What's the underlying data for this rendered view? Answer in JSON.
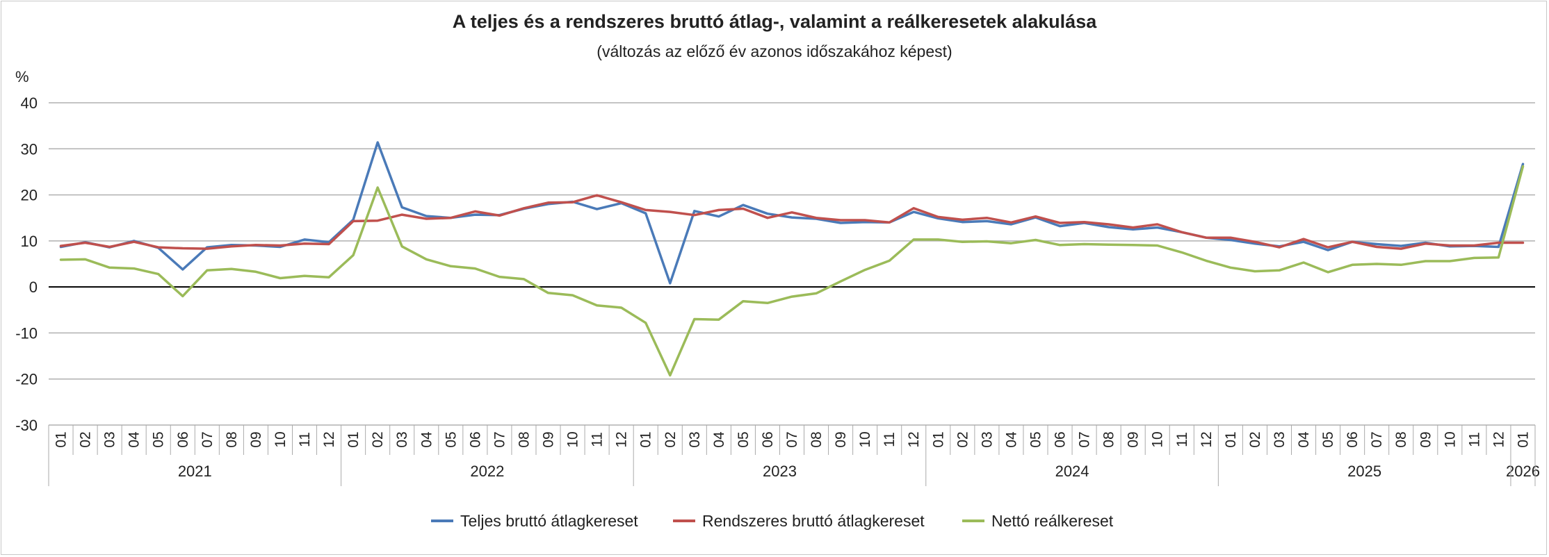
{
  "chart_data": {
    "type": "line",
    "title": "A teljes és a rendszeres bruttó átlag-, valamint a reálkeresetek alakulása",
    "subtitle": "(változás az előző év azonos időszakához képest)",
    "ylabel": "%",
    "ylim": [
      -30,
      40
    ],
    "yticks": [
      40,
      30,
      20,
      10,
      0,
      -10,
      -20,
      -30
    ],
    "grid": true,
    "legend_position": "bottom",
    "months": [
      "01",
      "02",
      "03",
      "04",
      "05",
      "06",
      "07",
      "08",
      "09",
      "10",
      "11",
      "12",
      "01",
      "02",
      "03",
      "04",
      "05",
      "06",
      "07",
      "08",
      "09",
      "10",
      "11",
      "12",
      "01",
      "02",
      "03",
      "04",
      "05",
      "06",
      "07",
      "08",
      "09",
      "10",
      "11",
      "12",
      "01",
      "02",
      "03",
      "04",
      "05",
      "06",
      "07",
      "08",
      "09",
      "10",
      "11",
      "12",
      "01",
      "02",
      "03",
      "04",
      "05",
      "06",
      "07",
      "08",
      "09",
      "10",
      "11",
      "12",
      "01"
    ],
    "years": [
      {
        "label": "2021",
        "start": 0,
        "count": 12
      },
      {
        "label": "2022",
        "start": 12,
        "count": 12
      },
      {
        "label": "2023",
        "start": 24,
        "count": 12
      },
      {
        "label": "2024",
        "start": 36,
        "count": 12
      },
      {
        "label": "2025",
        "start": 48,
        "count": 12
      },
      {
        "label": "2026",
        "start": 60,
        "count": 1
      }
    ],
    "series": [
      {
        "name": "Teljes bruttó átlagkereset",
        "color": "#4a7ab8",
        "values": [
          8.7,
          9.7,
          8.6,
          10.0,
          8.5,
          3.8,
          8.6,
          9.1,
          9.0,
          8.7,
          10.3,
          9.7,
          14.6,
          31.4,
          17.3,
          15.4,
          15.0,
          15.7,
          15.6,
          17.0,
          18.0,
          18.5,
          16.9,
          18.2,
          16.0,
          0.8,
          16.5,
          15.3,
          17.8,
          15.9,
          15.1,
          14.8,
          13.9,
          14.1,
          14.0,
          16.3,
          14.9,
          14.1,
          14.3,
          13.6,
          15.1,
          13.2,
          13.9,
          13.0,
          12.5,
          12.9,
          11.9,
          10.7,
          10.2,
          9.4,
          8.8,
          9.8,
          8.0,
          9.8,
          9.3,
          8.9,
          9.6,
          8.8,
          8.9,
          8.7,
          26.7
        ]
      },
      {
        "name": "Rendszeres bruttó átlagkereset",
        "color": "#c0504d",
        "values": [
          8.9,
          9.6,
          8.7,
          9.8,
          8.6,
          8.4,
          8.3,
          8.8,
          9.1,
          9.0,
          9.4,
          9.3,
          14.3,
          14.4,
          15.7,
          14.8,
          15.0,
          16.4,
          15.5,
          17.1,
          18.3,
          18.4,
          19.9,
          18.4,
          16.7,
          16.3,
          15.6,
          16.7,
          17.0,
          15.0,
          16.2,
          15.0,
          14.5,
          14.5,
          14.0,
          17.1,
          15.2,
          14.6,
          15.0,
          14.0,
          15.3,
          13.9,
          14.1,
          13.6,
          12.9,
          13.6,
          11.9,
          10.7,
          10.7,
          9.8,
          8.6,
          10.4,
          8.6,
          9.8,
          8.7,
          8.3,
          9.4,
          9.0,
          9.0,
          9.6,
          9.6
        ]
      },
      {
        "name": "Nettó reálkereset",
        "color": "#9bbb59",
        "values": [
          5.9,
          6.0,
          4.2,
          4.0,
          2.8,
          -2.0,
          3.6,
          3.9,
          3.3,
          1.9,
          2.4,
          2.1,
          6.9,
          21.6,
          8.8,
          6.0,
          4.5,
          4.0,
          2.2,
          1.7,
          -1.3,
          -1.8,
          -4.0,
          -4.5,
          -7.8,
          -19.2,
          -7.0,
          -7.1,
          -3.1,
          -3.5,
          -2.1,
          -1.4,
          1.2,
          3.7,
          5.7,
          10.3,
          10.3,
          9.8,
          9.9,
          9.5,
          10.2,
          9.1,
          9.3,
          9.2,
          9.1,
          9.0,
          7.5,
          5.7,
          4.2,
          3.4,
          3.6,
          5.3,
          3.2,
          4.8,
          5.0,
          4.8,
          5.6,
          5.6,
          6.3,
          6.4,
          26.2
        ]
      }
    ]
  }
}
